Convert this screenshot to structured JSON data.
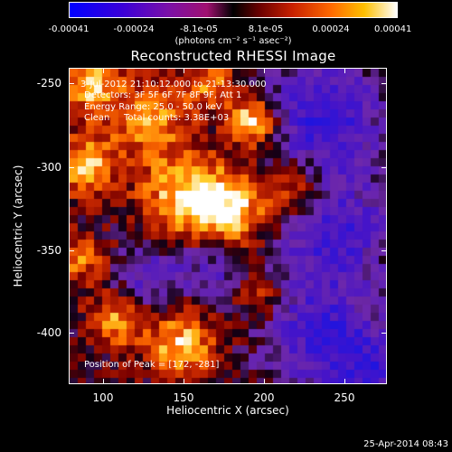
{
  "colorbar": {
    "ticks": [
      "-0.00041",
      "-0.00024",
      "-8.1e-05",
      "8.1e-05",
      "0.00024",
      "0.00041"
    ],
    "unit": "(photons cm⁻² s⁻¹ asec⁻²)"
  },
  "image": {
    "title": "Reconstructed RHESSI Image",
    "time_range": "3-Jul-2012 21:10:12.000 to 21:13:30.000",
    "detectors": "Detectors: 3F 5F 6F 7F 8F 9F, Att 1",
    "energy_range": "Energy Range: 25.0 - 50.0 keV",
    "method": "Clean",
    "total_counts": "Total counts: 3.38E+03",
    "peak": "Position of Peak = [172, -281]"
  },
  "axes": {
    "xlabel": "Heliocentric X (arcsec)",
    "ylabel": "Heliocentric Y (arcsec)",
    "xticks": [
      "100",
      "150",
      "200",
      "250"
    ],
    "yticks": [
      "-250",
      "-300",
      "-350",
      "-400"
    ]
  },
  "footer": {
    "date": "25-Apr-2014 08:43"
  }
}
